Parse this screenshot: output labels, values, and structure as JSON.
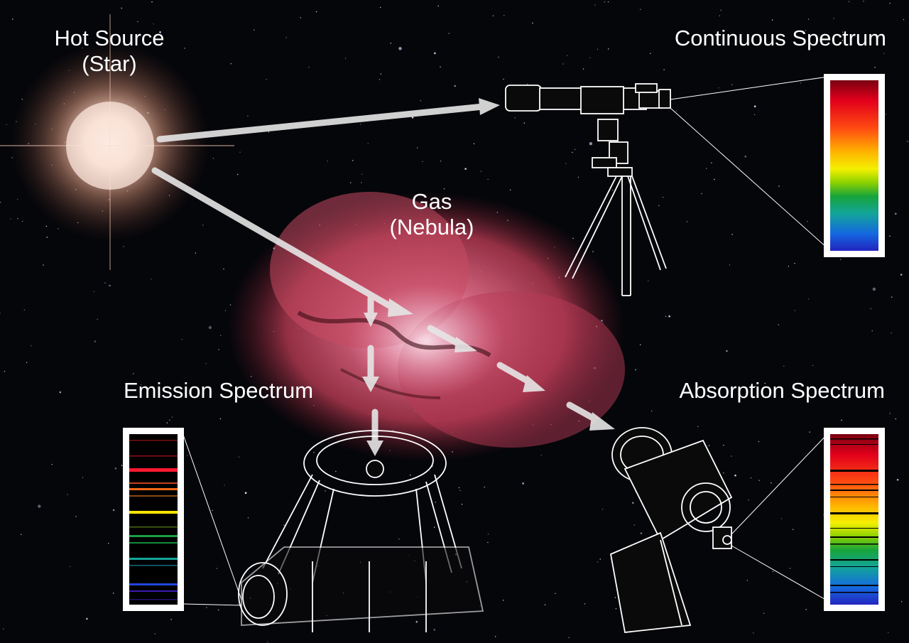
{
  "labels": {
    "hot_source_line1": "Hot Source",
    "hot_source_line2": "(Star)",
    "gas_line1": "Gas",
    "gas_line2": "(Nebula)",
    "continuous": "Continuous Spectrum",
    "emission": "Emission Spectrum",
    "absorption": "Absorption Spectrum"
  },
  "colors": {
    "background": "#05060a",
    "star_glow": "#f3c9b8",
    "nebula": "#d0506a",
    "arrows": "#e6e6e6",
    "frame": "#ffffff"
  },
  "icons": [
    "refractor-telescope-icon",
    "reflector-telescope-icon",
    "dome-telescope-icon",
    "star-icon",
    "nebula-icon"
  ]
}
